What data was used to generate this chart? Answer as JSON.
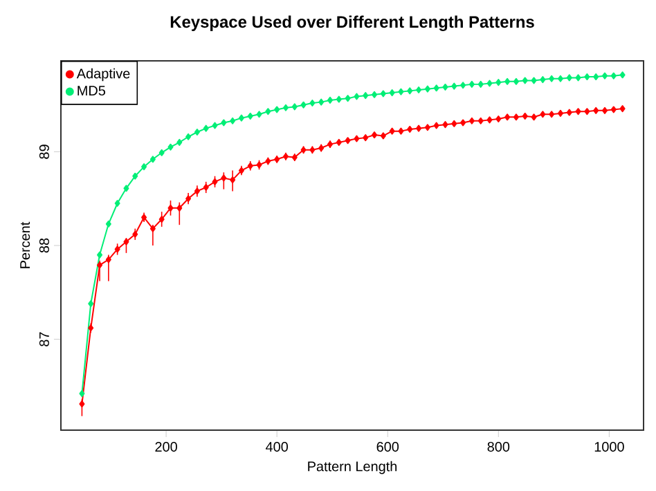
{
  "chart_data": {
    "type": "line",
    "title": "Keyspace Used over Different Length Patterns",
    "xlabel": "Pattern Length",
    "ylabel": "Percent",
    "x": [
      48,
      64,
      80,
      96,
      112,
      128,
      144,
      160,
      176,
      192,
      208,
      224,
      240,
      256,
      272,
      288,
      304,
      320,
      336,
      352,
      368,
      384,
      400,
      416,
      432,
      448,
      464,
      480,
      496,
      512,
      528,
      544,
      560,
      576,
      592,
      608,
      624,
      640,
      656,
      672,
      688,
      704,
      720,
      736,
      752,
      768,
      784,
      800,
      816,
      832,
      848,
      864,
      880,
      896,
      912,
      928,
      944,
      960,
      976,
      992,
      1008,
      1024
    ],
    "series": [
      {
        "name": "Adaptive",
        "color": "#ff0000",
        "values": [
          86.31,
          87.12,
          87.79,
          87.85,
          87.96,
          88.04,
          88.12,
          88.3,
          88.18,
          88.28,
          88.4,
          88.4,
          88.5,
          88.58,
          88.62,
          88.68,
          88.72,
          88.7,
          88.8,
          88.85,
          88.86,
          88.9,
          88.92,
          88.95,
          88.94,
          89.02,
          89.02,
          89.04,
          89.08,
          89.1,
          89.12,
          89.14,
          89.15,
          89.18,
          89.17,
          89.22,
          89.22,
          89.24,
          89.25,
          89.26,
          89.28,
          89.29,
          89.3,
          89.31,
          89.33,
          89.33,
          89.34,
          89.35,
          89.37,
          89.37,
          89.38,
          89.37,
          89.4,
          89.4,
          89.41,
          89.42,
          89.43,
          89.43,
          89.44,
          89.44,
          89.45,
          89.46
        ],
        "errors": [
          [
            86.18,
            86.36
          ],
          0.05,
          [
            87.62,
            87.84
          ],
          [
            87.62,
            87.9
          ],
          0.06,
          [
            87.92,
            88.08
          ],
          0.06,
          0.05,
          [
            88.0,
            88.22
          ],
          0.08,
          0.08,
          [
            88.22,
            88.46
          ],
          0.06,
          0.06,
          0.06,
          0.06,
          [
            88.6,
            88.78
          ],
          [
            88.58,
            88.8
          ],
          0.05,
          0.05,
          0.05,
          0.04,
          0.04,
          0.04,
          0.04,
          0.04,
          0.04,
          0.04,
          0.04,
          0.03,
          0.03,
          0.03,
          0.03,
          0.03,
          0.03,
          0.03,
          0.03,
          0.03,
          0.03,
          0.03,
          0.03,
          0.03,
          0.03,
          0.03,
          0.03,
          0.03,
          0.03,
          0.03,
          0.03,
          0.03,
          0.03,
          0.03,
          0.03,
          0.03,
          0.03,
          0.03,
          0.03,
          0.03,
          0.03,
          0.03,
          0.03,
          0.03
        ]
      },
      {
        "name": "MD5",
        "color": "#00ee76",
        "values": [
          86.42,
          87.38,
          87.9,
          88.23,
          88.45,
          88.61,
          88.74,
          88.84,
          88.92,
          88.99,
          89.05,
          89.1,
          89.16,
          89.21,
          89.25,
          89.28,
          89.31,
          89.33,
          89.36,
          89.38,
          89.4,
          89.43,
          89.45,
          89.47,
          89.48,
          89.5,
          89.52,
          89.53,
          89.55,
          89.56,
          89.57,
          89.59,
          89.6,
          89.61,
          89.62,
          89.63,
          89.64,
          89.65,
          89.66,
          89.67,
          89.68,
          89.69,
          89.7,
          89.71,
          89.72,
          89.72,
          89.73,
          89.74,
          89.75,
          89.75,
          89.76,
          89.76,
          89.77,
          89.78,
          89.78,
          89.79,
          89.79,
          89.8,
          89.8,
          89.81,
          89.81,
          89.82
        ]
      }
    ],
    "xlim": [
      10,
      1062
    ],
    "ylim": [
      86.03,
      89.97
    ],
    "xticks": [
      200,
      400,
      600,
      800,
      1000
    ],
    "yticks": [
      87,
      88,
      89
    ],
    "grid": false,
    "legend": "top left",
    "marker": "diamond",
    "line_style": "solid"
  }
}
